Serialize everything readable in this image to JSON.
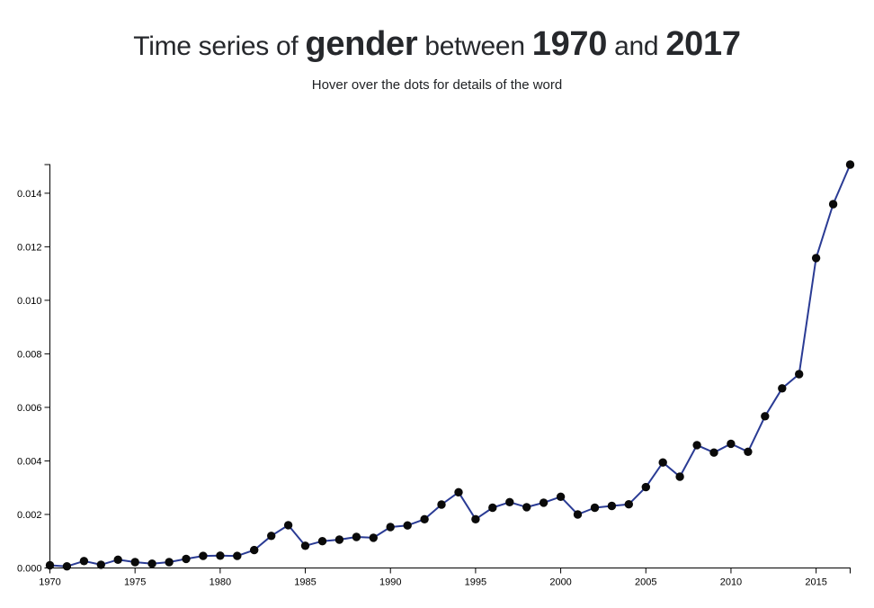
{
  "header": {
    "title": {
      "prefix": "Time series of",
      "word": "gender",
      "middle": "between",
      "year_start": "1970",
      "conjunction": "and",
      "year_end": "2017"
    },
    "subtitle": "Hover over the dots for details of the word"
  },
  "chart_data": {
    "type": "line",
    "title": "Time series of gender between 1970 and 2017",
    "subtitle": "Hover over the dots for details of the word",
    "xlabel": "",
    "ylabel": "",
    "grid": false,
    "legend": null,
    "xlim": [
      1970,
      2017
    ],
    "ylim": [
      0,
      0.01507
    ],
    "x_ticks": [
      1970,
      1975,
      1980,
      1985,
      1990,
      1995,
      2000,
      2005,
      2010,
      2015
    ],
    "x_tick_labels": [
      "1970",
      "1975",
      "1980",
      "1985",
      "1990",
      "1995",
      "2000",
      "2005",
      "2010",
      "2015"
    ],
    "y_ticks": [
      0,
      0.002,
      0.004,
      0.006,
      0.008,
      0.01,
      0.012,
      0.014
    ],
    "y_tick_labels": [
      "0.000",
      "0.002",
      "0.004",
      "0.006",
      "0.008",
      "0.010",
      "0.012",
      "0.014"
    ],
    "x": [
      1970,
      1971,
      1972,
      1973,
      1974,
      1975,
      1976,
      1977,
      1978,
      1979,
      1980,
      1981,
      1982,
      1983,
      1984,
      1985,
      1986,
      1987,
      1988,
      1989,
      1990,
      1991,
      1992,
      1993,
      1994,
      1995,
      1996,
      1997,
      1998,
      1999,
      2000,
      2001,
      2002,
      2003,
      2004,
      2005,
      2006,
      2007,
      2008,
      2009,
      2010,
      2011,
      2012,
      2013,
      2014,
      2015,
      2016,
      2017
    ],
    "values": [
      0.0001,
      6e-05,
      0.00026,
      0.00012,
      0.00031,
      0.00022,
      0.00016,
      0.00022,
      0.00034,
      0.00045,
      0.00046,
      0.00045,
      0.00067,
      0.0012,
      0.0016,
      0.00083,
      0.001,
      0.00106,
      0.00116,
      0.00113,
      0.00153,
      0.00159,
      0.00182,
      0.00237,
      0.00283,
      0.00182,
      0.00225,
      0.00246,
      0.00227,
      0.00244,
      0.00266,
      0.002,
      0.00225,
      0.00232,
      0.00238,
      0.00302,
      0.00394,
      0.00341,
      0.00459,
      0.00431,
      0.00464,
      0.00434,
      0.00567,
      0.00671,
      0.00724,
      0.01158,
      0.01359,
      0.01507
    ],
    "line_color": "#2a3b94",
    "dot_color": "#0a0a0a",
    "axis_color": "#000000",
    "tick_label_color": "#000000"
  }
}
